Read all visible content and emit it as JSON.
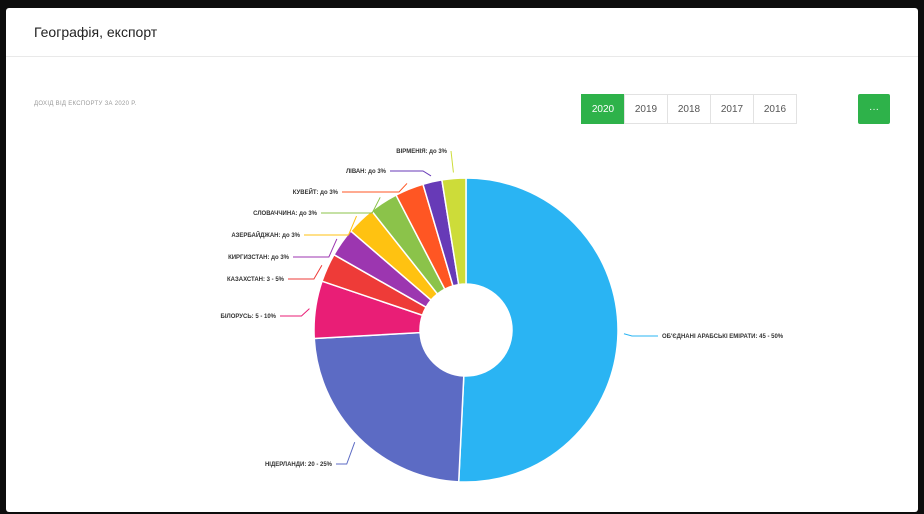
{
  "card": {
    "title": "Географія, експорт"
  },
  "subtitle": "ДОХІД ВІД ЕКСПОРТУ ЗА 2020 Р.",
  "years": [
    {
      "label": "2020",
      "active": true
    },
    {
      "label": "2019",
      "active": false
    },
    {
      "label": "2018",
      "active": false
    },
    {
      "label": "2017",
      "active": false
    },
    {
      "label": "2016",
      "active": false
    }
  ],
  "more_label": "···",
  "chart_data": {
    "type": "pie",
    "donut": true,
    "title": "ДОХІД ВІД ЕКСПОРТУ ЗА 2020 Р.",
    "slices": [
      {
        "label": "ОБ'ЄДНАНІ АРАБСЬКІ ЕМІРАТИ: 45 - 50%",
        "value": 50,
        "color": "#2ab4f3"
      },
      {
        "label": "НІДЕРЛАНДИ: 20 - 25%",
        "value": 23,
        "color": "#5c6bc4"
      },
      {
        "label": "БІЛОРУСЬ: 5 - 10%",
        "value": 6,
        "color": "#e91e76"
      },
      {
        "label": "КАЗАХСТАН: 3 - 5%",
        "value": 3,
        "color": "#ee3b38"
      },
      {
        "label": "КИРГИЗСТАН: до 3%",
        "value": 3,
        "color": "#9c36b0"
      },
      {
        "label": "АЗЕРБАЙДЖАН: до 3%",
        "value": 3,
        "color": "#ffc211"
      },
      {
        "label": "СЛОВАЧЧИНА: до 3%",
        "value": 3,
        "color": "#8bc34a"
      },
      {
        "label": "КУВЕЙТ: до 3%",
        "value": 3,
        "color": "#ff5623"
      },
      {
        "label": "ЛІВАН: до 3%",
        "value": 2,
        "color": "#673ab7"
      },
      {
        "label": "ВІРМЕНІЯ: до 3%",
        "value": 2.5,
        "color": "#cddc39"
      }
    ]
  }
}
